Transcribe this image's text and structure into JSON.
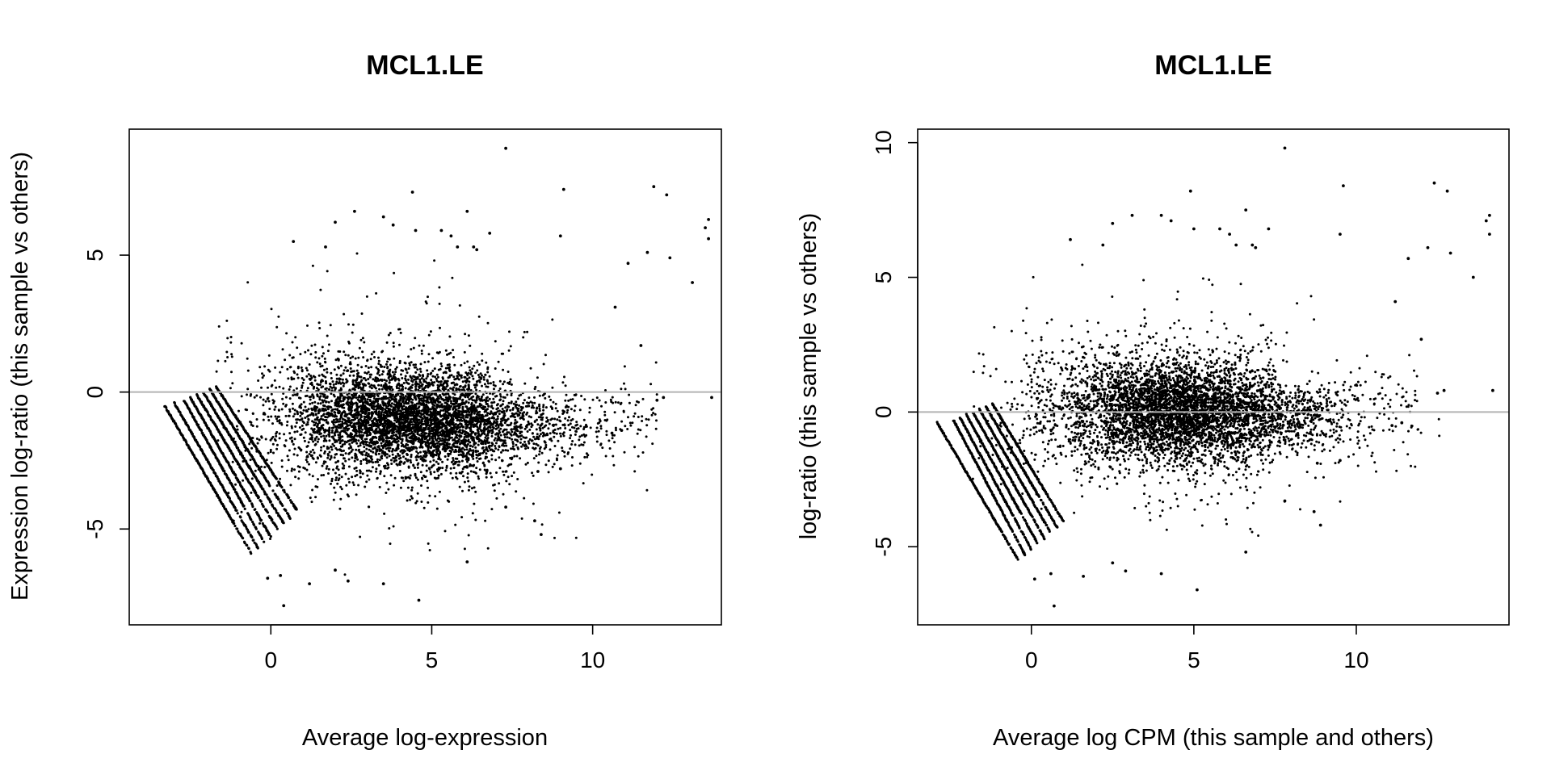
{
  "chart_data": [
    {
      "type": "scatter",
      "title": "MCL1.LE",
      "xlabel": "Average log-expression",
      "ylabel": "Expression log-ratio (this sample vs others)",
      "xlim": [
        -4.4,
        14.0
      ],
      "ylim": [
        -8.5,
        9.6
      ],
      "xticks": [
        0,
        5,
        10
      ],
      "yticks": [
        -5,
        0,
        5
      ],
      "hline": 0,
      "hline_color": "#b3b3b3",
      "point_color": "#000000",
      "grid": false,
      "legend": "none",
      "bulk": {
        "center_x": 4.3,
        "center_y": -1.0,
        "spread_y": 0.85,
        "slope": -0.05
      },
      "lines": [
        {
          "x": [
            -3.3,
            -0.6
          ],
          "y": [
            -0.5,
            -5.9
          ]
        },
        {
          "x": [
            -3.0,
            -0.4
          ],
          "y": [
            -0.4,
            -5.7
          ]
        },
        {
          "x": [
            -2.7,
            -0.2
          ],
          "y": [
            -0.3,
            -5.5
          ]
        },
        {
          "x": [
            -2.5,
            0.0
          ],
          "y": [
            -0.2,
            -5.3
          ]
        },
        {
          "x": [
            -2.3,
            0.2
          ],
          "y": [
            -0.1,
            -5.0
          ]
        },
        {
          "x": [
            -2.1,
            0.4
          ],
          "y": [
            0.0,
            -4.8
          ]
        },
        {
          "x": [
            -1.9,
            0.6
          ],
          "y": [
            0.1,
            -4.6
          ]
        },
        {
          "x": [
            -1.7,
            0.8
          ],
          "y": [
            0.2,
            -4.3
          ]
        }
      ],
      "outliers": [
        {
          "x": 7.3,
          "y": 8.9
        },
        {
          "x": 4.4,
          "y": 7.3
        },
        {
          "x": 11.9,
          "y": 7.5
        },
        {
          "x": 9.1,
          "y": 7.4
        },
        {
          "x": 12.3,
          "y": 7.2
        },
        {
          "x": 13.6,
          "y": 6.3
        },
        {
          "x": 13.5,
          "y": 6.0
        },
        {
          "x": 13.6,
          "y": 5.6
        },
        {
          "x": 2.6,
          "y": 6.6
        },
        {
          "x": 3.5,
          "y": 6.4
        },
        {
          "x": 6.1,
          "y": 6.6
        },
        {
          "x": 2.0,
          "y": 6.2
        },
        {
          "x": 3.8,
          "y": 6.1
        },
        {
          "x": 4.5,
          "y": 5.9
        },
        {
          "x": 5.3,
          "y": 5.9
        },
        {
          "x": 5.6,
          "y": 5.7
        },
        {
          "x": 6.8,
          "y": 5.8
        },
        {
          "x": 9.0,
          "y": 5.7
        },
        {
          "x": 5.8,
          "y": 5.3
        },
        {
          "x": 6.3,
          "y": 5.3
        },
        {
          "x": 6.4,
          "y": 5.2
        },
        {
          "x": 11.7,
          "y": 5.1
        },
        {
          "x": 12.4,
          "y": 4.9
        },
        {
          "x": 11.1,
          "y": 4.7
        },
        {
          "x": 0.7,
          "y": 5.5
        },
        {
          "x": 1.7,
          "y": 5.3
        },
        {
          "x": 13.1,
          "y": 4.0
        },
        {
          "x": 10.7,
          "y": 3.1
        },
        {
          "x": 11.5,
          "y": 1.7
        },
        {
          "x": 13.7,
          "y": -0.2
        },
        {
          "x": 12.0,
          "y": -0.3
        },
        {
          "x": 12.2,
          "y": -0.2
        },
        {
          "x": 10.9,
          "y": -1.4
        },
        {
          "x": 10.6,
          "y": -1.5
        },
        {
          "x": 8.2,
          "y": -4.7
        },
        {
          "x": 8.4,
          "y": -5.2
        },
        {
          "x": 4.6,
          "y": -7.6
        },
        {
          "x": 0.4,
          "y": -7.8
        },
        {
          "x": 3.5,
          "y": -7.0
        },
        {
          "x": 6.1,
          "y": -6.2
        },
        {
          "x": 2.4,
          "y": -6.9
        },
        {
          "x": 1.2,
          "y": -7.0
        },
        {
          "x": -0.1,
          "y": -6.8
        },
        {
          "x": 0.3,
          "y": -6.7
        },
        {
          "x": 2.0,
          "y": -6.5
        },
        {
          "x": 7.3,
          "y": -4.2
        },
        {
          "x": 9.0,
          "y": -2.8
        },
        {
          "x": 8.3,
          "y": -2.9
        }
      ]
    },
    {
      "type": "scatter",
      "title": "MCL1.LE",
      "xlabel": "Average log CPM (this sample and others)",
      "ylabel": "log-ratio (this sample vs others)",
      "xlim": [
        -3.5,
        14.7
      ],
      "ylim": [
        -7.9,
        10.5
      ],
      "xticks": [
        0,
        5,
        10
      ],
      "yticks": [
        -5,
        0,
        5,
        10
      ],
      "hline": 0,
      "hline_color": "#b3b3b3",
      "point_color": "#000000",
      "grid": false,
      "legend": "none",
      "bulk": {
        "center_x": 4.6,
        "center_y": 0.0,
        "spread_y": 0.85,
        "slope": -0.03
      },
      "lines": [
        {
          "x": [
            -2.9,
            -0.4
          ],
          "y": [
            -0.4,
            -5.5
          ]
        },
        {
          "x": [
            -2.4,
            -0.2
          ],
          "y": [
            -0.3,
            -5.3
          ]
        },
        {
          "x": [
            -2.2,
            0.0
          ],
          "y": [
            -0.2,
            -5.1
          ]
        },
        {
          "x": [
            -2.0,
            0.2
          ],
          "y": [
            -0.1,
            -4.9
          ]
        },
        {
          "x": [
            -1.8,
            0.4
          ],
          "y": [
            0.0,
            -4.7
          ]
        },
        {
          "x": [
            -1.6,
            0.6
          ],
          "y": [
            0.1,
            -4.5
          ]
        },
        {
          "x": [
            -1.4,
            0.8
          ],
          "y": [
            0.2,
            -4.3
          ]
        },
        {
          "x": [
            -1.2,
            1.0
          ],
          "y": [
            0.3,
            -4.1
          ]
        }
      ],
      "outliers": [
        {
          "x": 7.8,
          "y": 9.8
        },
        {
          "x": 4.9,
          "y": 8.2
        },
        {
          "x": 12.4,
          "y": 8.5
        },
        {
          "x": 9.6,
          "y": 8.4
        },
        {
          "x": 12.8,
          "y": 8.2
        },
        {
          "x": 14.1,
          "y": 7.3
        },
        {
          "x": 14.0,
          "y": 7.1
        },
        {
          "x": 14.1,
          "y": 6.6
        },
        {
          "x": 3.1,
          "y": 7.3
        },
        {
          "x": 4.0,
          "y": 7.3
        },
        {
          "x": 6.6,
          "y": 7.5
        },
        {
          "x": 2.5,
          "y": 7.0
        },
        {
          "x": 4.3,
          "y": 7.1
        },
        {
          "x": 5.0,
          "y": 6.8
        },
        {
          "x": 5.8,
          "y": 6.8
        },
        {
          "x": 6.1,
          "y": 6.6
        },
        {
          "x": 7.3,
          "y": 6.8
        },
        {
          "x": 9.5,
          "y": 6.6
        },
        {
          "x": 6.3,
          "y": 6.2
        },
        {
          "x": 6.8,
          "y": 6.2
        },
        {
          "x": 6.9,
          "y": 6.1
        },
        {
          "x": 12.2,
          "y": 6.1
        },
        {
          "x": 12.9,
          "y": 5.9
        },
        {
          "x": 11.6,
          "y": 5.7
        },
        {
          "x": 1.2,
          "y": 6.4
        },
        {
          "x": 2.2,
          "y": 6.2
        },
        {
          "x": 13.6,
          "y": 5.0
        },
        {
          "x": 11.2,
          "y": 4.1
        },
        {
          "x": 12.0,
          "y": 2.7
        },
        {
          "x": 14.2,
          "y": 0.8
        },
        {
          "x": 12.5,
          "y": 0.7
        },
        {
          "x": 12.7,
          "y": 0.8
        },
        {
          "x": 11.4,
          "y": -0.4
        },
        {
          "x": 11.1,
          "y": -0.5
        },
        {
          "x": 8.7,
          "y": -3.7
        },
        {
          "x": 8.9,
          "y": -4.2
        },
        {
          "x": 5.1,
          "y": -6.6
        },
        {
          "x": 0.7,
          "y": -7.2
        },
        {
          "x": 4.0,
          "y": -6.0
        },
        {
          "x": 6.6,
          "y": -5.2
        },
        {
          "x": 2.9,
          "y": -5.9
        },
        {
          "x": 1.6,
          "y": -6.1
        },
        {
          "x": 0.1,
          "y": -6.2
        },
        {
          "x": 0.6,
          "y": -6.0
        },
        {
          "x": 2.5,
          "y": -5.6
        },
        {
          "x": 7.8,
          "y": -3.3
        },
        {
          "x": 9.5,
          "y": -1.8
        },
        {
          "x": 8.8,
          "y": -1.9
        }
      ]
    }
  ]
}
